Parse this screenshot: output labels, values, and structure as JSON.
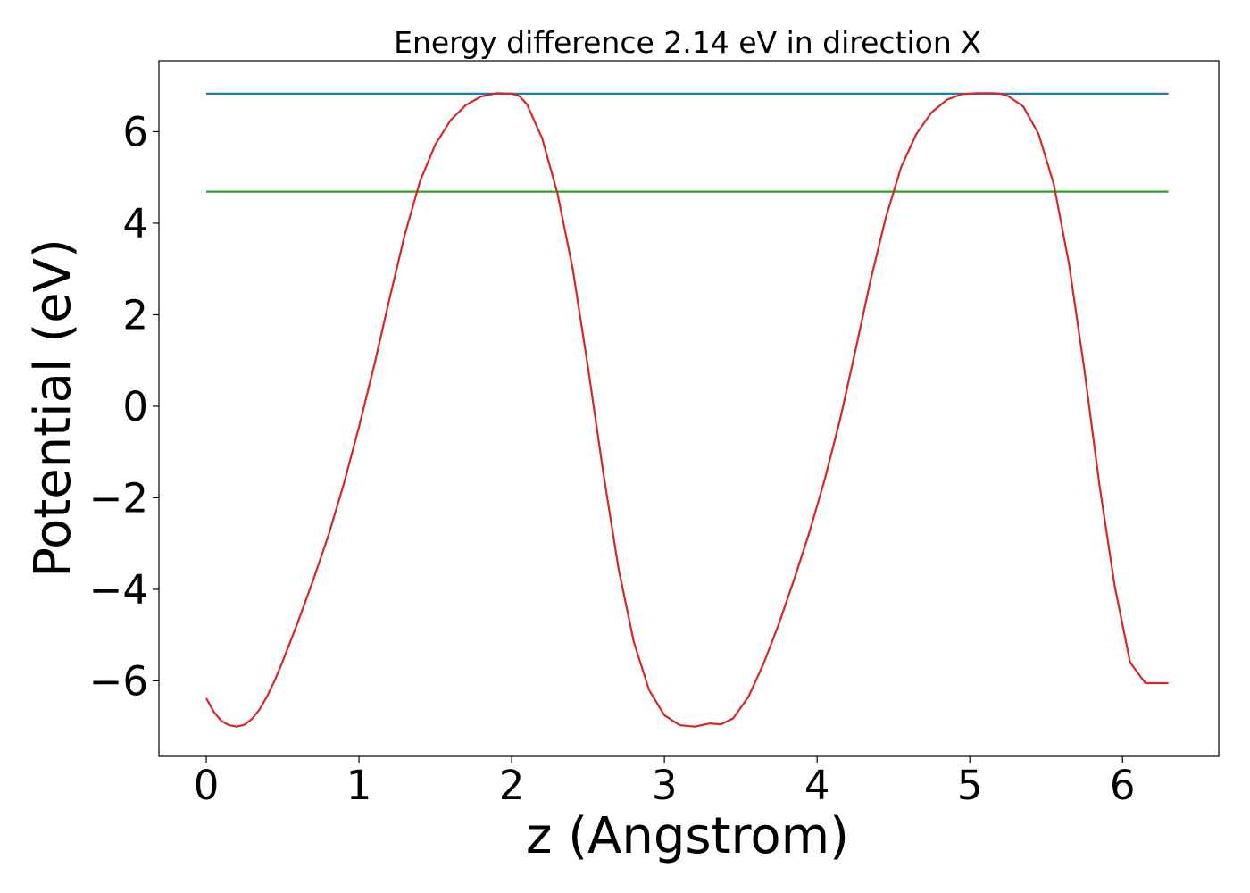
{
  "chart_data": {
    "type": "line",
    "title": "Energy difference 2.14 eV in direction X",
    "xlabel": "z (Angstrom)",
    "ylabel": "Potential (eV)",
    "xlim": [
      -0.31,
      6.63
    ],
    "ylim": [
      -7.65,
      7.55
    ],
    "xticks": [
      0,
      1,
      2,
      3,
      4,
      5,
      6
    ],
    "xtick_labels": [
      "0",
      "1",
      "2",
      "3",
      "4",
      "5",
      "6"
    ],
    "yticks": [
      -6,
      -4,
      -2,
      0,
      2,
      4,
      6
    ],
    "ytick_labels": [
      "−6",
      "−4",
      "−2",
      "0",
      "2",
      "4",
      "6"
    ],
    "grid": false,
    "series": [
      {
        "color": "#1f77b4",
        "x": [
          0,
          6.3
        ],
        "y": [
          6.83,
          6.83
        ]
      },
      {
        "color": "#2ca02c",
        "x": [
          0,
          6.3
        ],
        "y": [
          4.69,
          4.69
        ]
      },
      {
        "color": "#d62728",
        "x": [
          0,
          0.05,
          0.1,
          0.15,
          0.2,
          0.25,
          0.3,
          0.35,
          0.4,
          0.45,
          0.5,
          0.6,
          0.7,
          0.8,
          0.9,
          1.0,
          1.1,
          1.2,
          1.3,
          1.4,
          1.5,
          1.6,
          1.7,
          1.8,
          1.9,
          2.0,
          2.05,
          2.1,
          2.2,
          2.3,
          2.4,
          2.5,
          2.6,
          2.7,
          2.8,
          2.9,
          3.0,
          3.1,
          3.2,
          3.3,
          3.37,
          3.45,
          3.55,
          3.65,
          3.75,
          3.85,
          3.95,
          4.05,
          4.15,
          4.25,
          4.35,
          4.45,
          4.55,
          4.65,
          4.75,
          4.85,
          4.95,
          5.05,
          5.15,
          5.2,
          5.25,
          5.35,
          5.45,
          5.55,
          5.65,
          5.75,
          5.85,
          5.95,
          6.05,
          6.15,
          6.25,
          6.3
        ],
        "y": [
          -6.38,
          -6.68,
          -6.88,
          -6.97,
          -7.0,
          -6.96,
          -6.83,
          -6.62,
          -6.33,
          -5.98,
          -5.58,
          -4.72,
          -3.8,
          -2.82,
          -1.7,
          -0.45,
          0.9,
          2.35,
          3.75,
          4.92,
          5.72,
          6.25,
          6.58,
          6.77,
          6.84,
          6.83,
          6.78,
          6.6,
          5.85,
          4.65,
          3.0,
          0.85,
          -1.45,
          -3.55,
          -5.15,
          -6.2,
          -6.75,
          -6.97,
          -7.0,
          -6.93,
          -6.95,
          -6.82,
          -6.35,
          -5.62,
          -4.75,
          -3.78,
          -2.75,
          -1.6,
          -0.3,
          1.2,
          2.75,
          4.12,
          5.22,
          5.95,
          6.42,
          6.7,
          6.82,
          6.84,
          6.84,
          6.83,
          6.78,
          6.55,
          5.95,
          4.85,
          3.1,
          0.8,
          -1.75,
          -3.95,
          -5.6,
          -6.05,
          -6.05,
          -6.05
        ]
      }
    ]
  }
}
